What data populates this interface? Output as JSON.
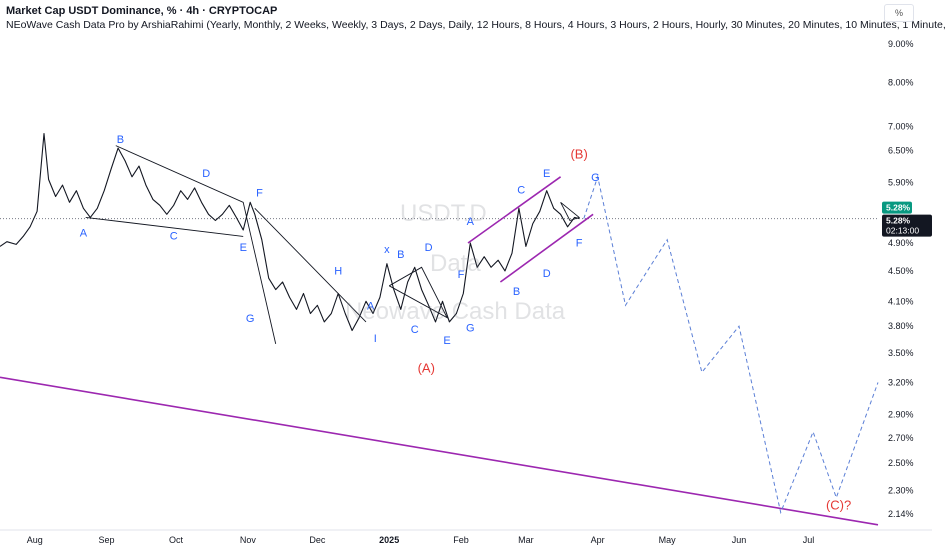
{
  "header": {
    "title": "Market Cap USDT Dominance, % · 4h · CRYPTOCAP",
    "indicator": "NEoWave Cash Data Pro by ArshiaRahimi (Yearly, Monthly, 2 Weeks, Weekly, 3 Days, 2 Days, Daily, 12 Hours, 8 Hours, 4 Hours, 3 Hours, 2 Hours, Hourly, 30 Minutes, 20 Minutes, 10 Minutes, 1 Minute,",
    "scale_button": "%"
  },
  "watermark": {
    "line1": "USDT.D",
    "line2": "Data",
    "line3": "Neowave Cash Data"
  },
  "chart_data": {
    "type": "line",
    "y_scale": "log",
    "ylim": [
      2.05,
      9.4
    ],
    "y_ticks": [
      "9.00%",
      "8.00%",
      "7.00%",
      "6.50%",
      "5.90%",
      "4.90%",
      "4.50%",
      "4.10%",
      "3.80%",
      "3.50%",
      "3.20%",
      "2.90%",
      "2.70%",
      "2.50%",
      "2.30%",
      "2.14%"
    ],
    "y_tick_values": [
      9.0,
      8.0,
      7.0,
      6.5,
      5.9,
      4.9,
      4.5,
      4.1,
      3.8,
      3.5,
      3.2,
      2.9,
      2.7,
      2.5,
      2.3,
      2.14
    ],
    "x_ticks": [
      "Aug",
      "Sep",
      "Oct",
      "Nov",
      "Dec",
      "2025",
      "Feb",
      "Mar",
      "Apr",
      "May",
      "Jun",
      "Jul"
    ],
    "x_tick_dates": [
      "2024-08-01",
      "2024-09-01",
      "2024-10-01",
      "2024-11-01",
      "2024-12-01",
      "2025-01-01",
      "2025-02-01",
      "2025-03-01",
      "2025-04-01",
      "2025-05-01",
      "2025-06-01",
      "2025-07-01"
    ],
    "current_price": {
      "value": 5.28,
      "label": "5.28%",
      "badge_price": "5.28%",
      "countdown": "02:13:00"
    },
    "price_series": {
      "name": "USDT.D",
      "points": [
        [
          "2024-07-17",
          4.85
        ],
        [
          "2024-07-20",
          4.92
        ],
        [
          "2024-07-24",
          4.88
        ],
        [
          "2024-07-27",
          5.0
        ],
        [
          "2024-07-30",
          5.15
        ],
        [
          "2024-08-02",
          5.4
        ],
        [
          "2024-08-05",
          6.85
        ],
        [
          "2024-08-07",
          5.95
        ],
        [
          "2024-08-10",
          5.65
        ],
        [
          "2024-08-13",
          5.85
        ],
        [
          "2024-08-16",
          5.55
        ],
        [
          "2024-08-19",
          5.75
        ],
        [
          "2024-08-22",
          5.45
        ],
        [
          "2024-08-25",
          5.3
        ],
        [
          "2024-08-28",
          5.45
        ],
        [
          "2024-08-31",
          5.75
        ],
        [
          "2024-09-03",
          6.15
        ],
        [
          "2024-09-06",
          6.55
        ],
        [
          "2024-09-09",
          6.3
        ],
        [
          "2024-09-12",
          6.0
        ],
        [
          "2024-09-15",
          6.2
        ],
        [
          "2024-09-18",
          5.85
        ],
        [
          "2024-09-21",
          5.6
        ],
        [
          "2024-09-24",
          5.5
        ],
        [
          "2024-09-27",
          5.35
        ],
        [
          "2024-09-30",
          5.5
        ],
        [
          "2024-10-03",
          5.75
        ],
        [
          "2024-10-06",
          5.6
        ],
        [
          "2024-10-09",
          5.8
        ],
        [
          "2024-10-12",
          5.55
        ],
        [
          "2024-10-15",
          5.35
        ],
        [
          "2024-10-18",
          5.25
        ],
        [
          "2024-10-21",
          5.35
        ],
        [
          "2024-10-24",
          5.5
        ],
        [
          "2024-10-27",
          5.3
        ],
        [
          "2024-10-30",
          5.1
        ],
        [
          "2024-11-02",
          5.55
        ],
        [
          "2024-11-04",
          5.35
        ],
        [
          "2024-11-07",
          4.95
        ],
        [
          "2024-11-10",
          4.4
        ],
        [
          "2024-11-13",
          4.25
        ],
        [
          "2024-11-16",
          4.35
        ],
        [
          "2024-11-19",
          4.15
        ],
        [
          "2024-11-22",
          4.0
        ],
        [
          "2024-11-25",
          4.2
        ],
        [
          "2024-11-28",
          3.95
        ],
        [
          "2024-12-01",
          4.05
        ],
        [
          "2024-12-04",
          3.85
        ],
        [
          "2024-12-07",
          3.95
        ],
        [
          "2024-12-10",
          4.2
        ],
        [
          "2024-12-13",
          3.95
        ],
        [
          "2024-12-16",
          3.75
        ],
        [
          "2024-12-19",
          3.9
        ],
        [
          "2024-12-22",
          4.1
        ],
        [
          "2024-12-25",
          3.95
        ],
        [
          "2024-12-28",
          4.15
        ],
        [
          "2024-12-31",
          4.6
        ],
        [
          "2025-01-03",
          4.25
        ],
        [
          "2025-01-06",
          4.0
        ],
        [
          "2025-01-09",
          4.35
        ],
        [
          "2025-01-12",
          4.55
        ],
        [
          "2025-01-15",
          4.25
        ],
        [
          "2025-01-18",
          4.05
        ],
        [
          "2025-01-21",
          3.85
        ],
        [
          "2025-01-24",
          4.1
        ],
        [
          "2025-01-27",
          3.85
        ],
        [
          "2025-01-30",
          3.95
        ],
        [
          "2025-02-02",
          4.2
        ],
        [
          "2025-02-05",
          4.9
        ],
        [
          "2025-02-08",
          4.55
        ],
        [
          "2025-02-11",
          4.7
        ],
        [
          "2025-02-14",
          4.55
        ],
        [
          "2025-02-17",
          4.65
        ],
        [
          "2025-02-20",
          4.5
        ],
        [
          "2025-02-23",
          4.75
        ],
        [
          "2025-02-26",
          5.45
        ],
        [
          "2025-03-01",
          4.85
        ],
        [
          "2025-03-04",
          5.2
        ],
        [
          "2025-03-07",
          5.4
        ],
        [
          "2025-03-10",
          5.75
        ],
        [
          "2025-03-13",
          5.45
        ],
        [
          "2025-03-16",
          5.35
        ],
        [
          "2025-03-19",
          5.15
        ],
        [
          "2025-03-22",
          5.3
        ],
        [
          "2025-03-24",
          5.28
        ]
      ]
    },
    "projection": {
      "style": "dashed",
      "color": "#5b7fd6",
      "points": [
        [
          "2025-03-26",
          5.28
        ],
        [
          "2025-04-01",
          6.0
        ],
        [
          "2025-04-13",
          4.05
        ],
        [
          "2025-05-01",
          4.95
        ],
        [
          "2025-05-16",
          3.3
        ],
        [
          "2025-06-01",
          3.8
        ],
        [
          "2025-06-19",
          2.15
        ],
        [
          "2025-07-03",
          2.75
        ],
        [
          "2025-07-13",
          2.25
        ],
        [
          "2025-07-31",
          3.2
        ]
      ]
    },
    "wave_lines": [
      {
        "color": "#131722",
        "points": [
          [
            "2024-09-05",
            6.6
          ],
          [
            "2024-10-30",
            5.55
          ],
          [
            "2024-11-13",
            3.6
          ]
        ]
      },
      {
        "color": "#131722",
        "points": [
          [
            "2024-08-23",
            5.3
          ],
          [
            "2024-10-30",
            5.0
          ]
        ]
      },
      {
        "color": "#131722",
        "points": [
          [
            "2024-11-04",
            5.45
          ],
          [
            "2024-12-22",
            3.85
          ]
        ]
      },
      {
        "color": "#131722",
        "points": [
          [
            "2025-01-01",
            4.3
          ],
          [
            "2025-01-15",
            4.55
          ],
          [
            "2025-01-26",
            3.9
          ],
          [
            "2025-01-01",
            4.3
          ]
        ]
      },
      {
        "color": "#131722",
        "points": [
          [
            "2025-03-16",
            5.55
          ],
          [
            "2025-03-20",
            5.25
          ],
          [
            "2025-03-24",
            5.3
          ],
          [
            "2025-03-16",
            5.55
          ]
        ]
      }
    ],
    "channel_lines": [
      {
        "color": "#9c27b0",
        "points": [
          [
            "2025-02-04",
            4.9
          ],
          [
            "2025-03-16",
            6.0
          ]
        ]
      },
      {
        "color": "#9c27b0",
        "points": [
          [
            "2025-02-18",
            4.35
          ],
          [
            "2025-03-30",
            5.35
          ]
        ]
      },
      {
        "color": "#9c27b0",
        "points": [
          [
            "2024-07-17",
            3.25
          ],
          [
            "2025-07-31",
            2.07
          ]
        ]
      }
    ],
    "annotations": [
      {
        "text": "A",
        "date": "2024-08-22",
        "value": 5.0,
        "color": "#2962ff"
      },
      {
        "text": "B",
        "date": "2024-09-07",
        "value": 6.65,
        "color": "#2962ff"
      },
      {
        "text": "C",
        "date": "2024-09-30",
        "value": 4.95,
        "color": "#2962ff"
      },
      {
        "text": "D",
        "date": "2024-10-14",
        "value": 6.0,
        "color": "#2962ff"
      },
      {
        "text": "E",
        "date": "2024-10-30",
        "value": 4.78,
        "color": "#2962ff"
      },
      {
        "text": "F",
        "date": "2024-11-06",
        "value": 5.65,
        "color": "#2962ff"
      },
      {
        "text": "G",
        "date": "2024-11-02",
        "value": 3.85,
        "color": "#2962ff"
      },
      {
        "text": "H",
        "date": "2024-12-10",
        "value": 4.45,
        "color": "#2962ff"
      },
      {
        "text": "I",
        "date": "2024-12-26",
        "value": 3.62,
        "color": "#2962ff"
      },
      {
        "text": "x",
        "date": "2024-12-31",
        "value": 4.75,
        "color": "#2962ff"
      },
      {
        "text": "A",
        "date": "2024-12-24",
        "value": 4.0,
        "color": "#2962ff"
      },
      {
        "text": "B",
        "date": "2025-01-06",
        "value": 4.68,
        "color": "#2962ff"
      },
      {
        "text": "C",
        "date": "2025-01-12",
        "value": 3.72,
        "color": "#2962ff"
      },
      {
        "text": "D",
        "date": "2025-01-18",
        "value": 4.78,
        "color": "#2962ff"
      },
      {
        "text": "E",
        "date": "2025-01-26",
        "value": 3.6,
        "color": "#2962ff"
      },
      {
        "text": "F",
        "date": "2025-02-01",
        "value": 4.4,
        "color": "#2962ff"
      },
      {
        "text": "G",
        "date": "2025-02-05",
        "value": 3.74,
        "color": "#2962ff"
      },
      {
        "text": "A",
        "date": "2025-02-05",
        "value": 5.18,
        "color": "#2962ff"
      },
      {
        "text": "B",
        "date": "2025-02-25",
        "value": 4.18,
        "color": "#2962ff"
      },
      {
        "text": "C",
        "date": "2025-02-27",
        "value": 5.7,
        "color": "#2962ff"
      },
      {
        "text": "D",
        "date": "2025-03-10",
        "value": 4.42,
        "color": "#2962ff"
      },
      {
        "text": "E",
        "date": "2025-03-10",
        "value": 6.0,
        "color": "#2962ff"
      },
      {
        "text": "F",
        "date": "2025-03-24",
        "value": 4.85,
        "color": "#2962ff"
      },
      {
        "text": "G",
        "date": "2025-03-31",
        "value": 5.92,
        "color": "#2962ff"
      },
      {
        "text": "(A)",
        "date": "2025-01-17",
        "value": 3.3,
        "color": "#e53935"
      },
      {
        "text": "(B)",
        "date": "2025-03-24",
        "value": 6.35,
        "color": "#e53935"
      },
      {
        "text": "(C)?",
        "date": "2025-07-14",
        "value": 2.17,
        "color": "#e53935"
      }
    ]
  }
}
